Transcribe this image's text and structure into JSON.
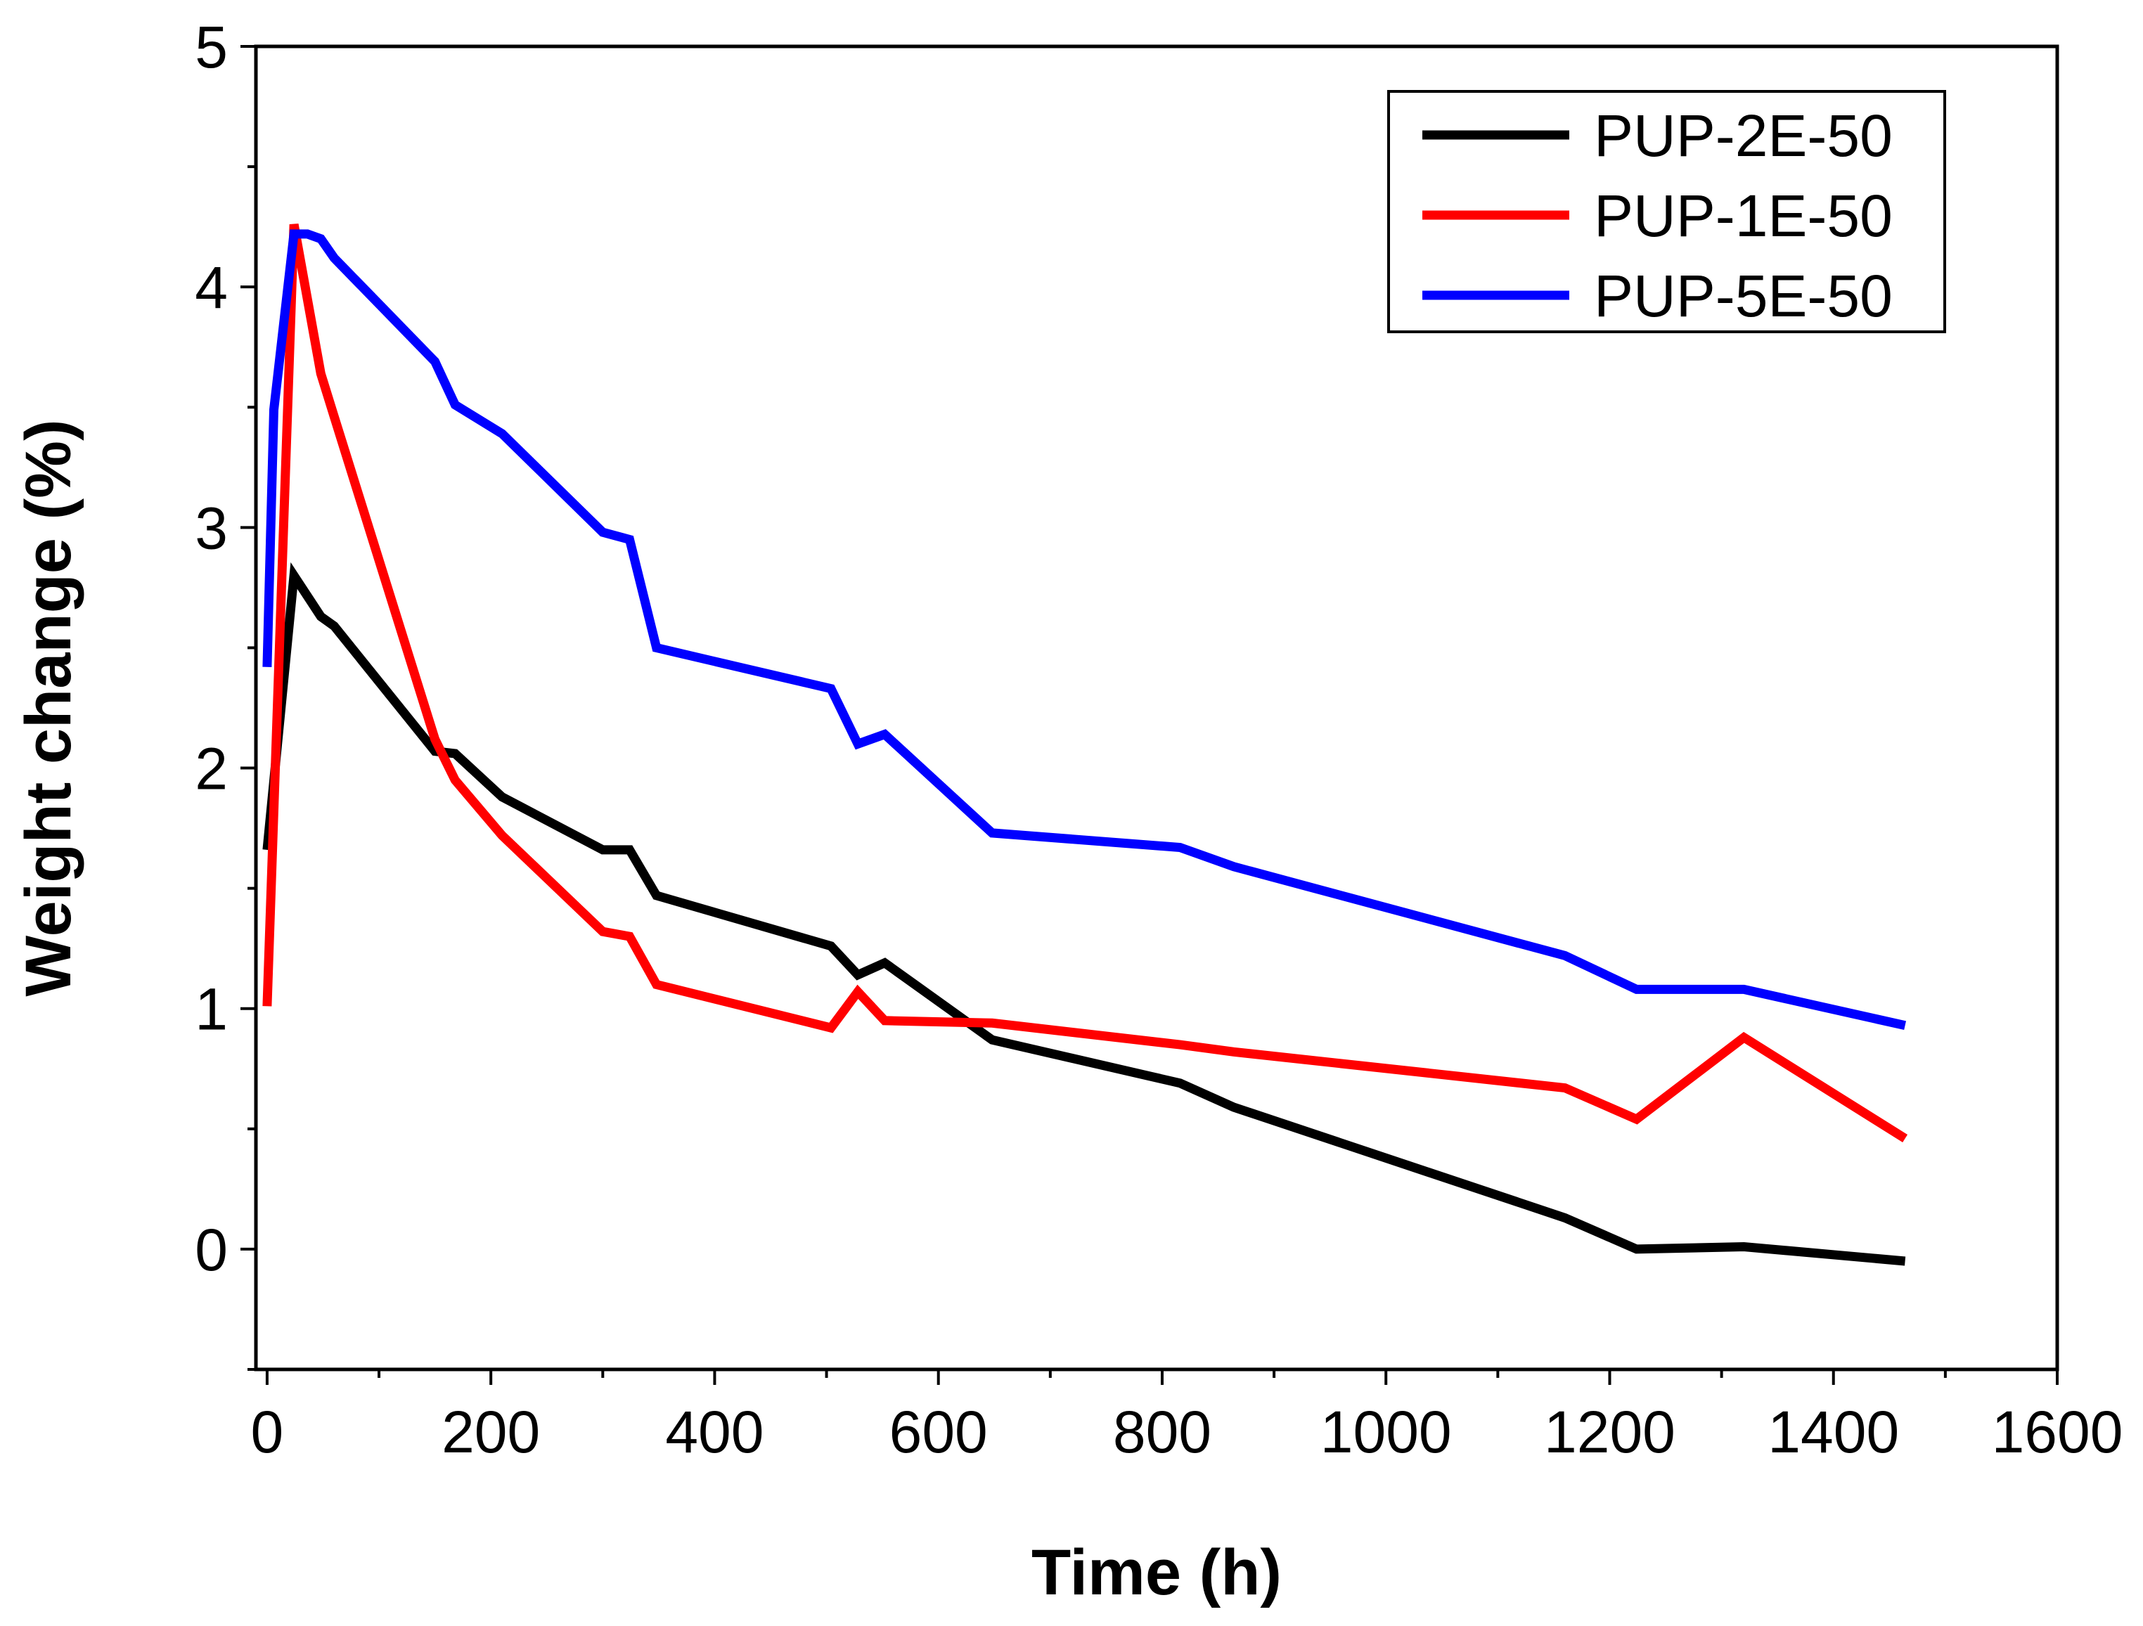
{
  "chart_data": {
    "type": "line",
    "title": "",
    "xlabel": "Time (h)",
    "ylabel": "Weight change (%)",
    "xlim": [
      -10,
      1600
    ],
    "ylim": [
      -0.5,
      5
    ],
    "xticks": [
      0,
      200,
      400,
      600,
      800,
      1000,
      1200,
      1400,
      1600
    ],
    "xtick_labels": [
      "0",
      "200",
      "400",
      "600",
      "800",
      "1000",
      "1200",
      "1400",
      "1600"
    ],
    "yticks": [
      0,
      1,
      2,
      3,
      4,
      5
    ],
    "ytick_labels": [
      "0",
      "1",
      "2",
      "3",
      "4",
      "5"
    ],
    "grid": false,
    "legend_position": "top-right",
    "series": [
      {
        "name": "PUP-2E-50",
        "color": "#000000",
        "x": [
          0,
          24,
          48,
          60,
          150,
          168,
          210,
          300,
          324,
          348,
          504,
          528,
          552,
          648,
          816,
          864,
          1160,
          1224,
          1320,
          1464
        ],
        "y": [
          1.66,
          2.8,
          2.63,
          2.59,
          2.07,
          2.06,
          1.88,
          1.66,
          1.66,
          1.47,
          1.26,
          1.14,
          1.19,
          0.87,
          0.69,
          0.59,
          0.13,
          0.0,
          0.01,
          -0.05
        ]
      },
      {
        "name": "PUP-1E-50",
        "color": "#ff0000",
        "x": [
          0,
          24,
          48,
          60,
          150,
          168,
          210,
          300,
          324,
          348,
          504,
          528,
          552,
          648,
          816,
          864,
          1160,
          1224,
          1320,
          1464
        ],
        "y": [
          1.01,
          4.26,
          3.64,
          3.46,
          2.12,
          1.95,
          1.72,
          1.32,
          1.3,
          1.1,
          0.92,
          1.07,
          0.95,
          0.94,
          0.85,
          0.82,
          0.67,
          0.54,
          0.88,
          0.46
        ]
      },
      {
        "name": "PUP-5E-50",
        "color": "#0000ff",
        "x": [
          0,
          6,
          24,
          36,
          48,
          60,
          150,
          168,
          210,
          300,
          324,
          348,
          504,
          528,
          552,
          648,
          816,
          864,
          1160,
          1224,
          1320,
          1464
        ],
        "y": [
          2.42,
          3.49,
          4.22,
          4.22,
          4.2,
          4.12,
          3.69,
          3.51,
          3.39,
          2.98,
          2.95,
          2.5,
          2.33,
          2.1,
          2.14,
          1.73,
          1.67,
          1.59,
          1.22,
          1.08,
          1.08,
          0.93
        ]
      }
    ]
  }
}
